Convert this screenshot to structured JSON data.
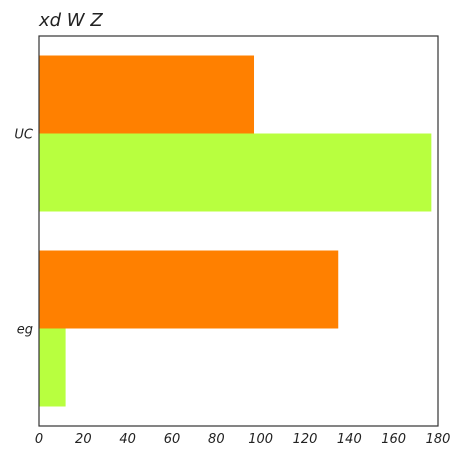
{
  "chart_data": {
    "type": "bar",
    "orientation": "horizontal",
    "title": "xd  W Z",
    "xlabel": "",
    "ylabel": "",
    "categories": [
      "UC",
      "eg"
    ],
    "series": [
      {
        "color": "#FF8000",
        "values": [
          97,
          135
        ]
      },
      {
        "color": "#B8FF3F",
        "values": [
          177,
          12
        ]
      }
    ],
    "xlim": [
      0,
      180
    ],
    "xticks": [
      0,
      20,
      40,
      60,
      80,
      100,
      120,
      140,
      160,
      180
    ],
    "grid": false,
    "legend": "none"
  }
}
